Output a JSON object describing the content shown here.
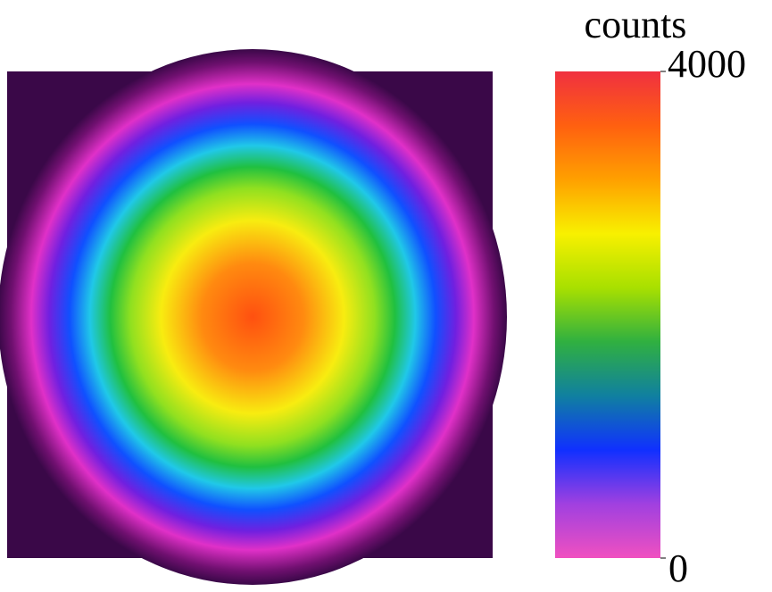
{
  "colorbar": {
    "title": "counts",
    "ticks": [
      0,
      4000
    ],
    "colors": [
      "#f050c0",
      "#a040e0",
      "#1030ff",
      "#1080a0",
      "#30b040",
      "#a8e000",
      "#f8f000",
      "#ffa000",
      "#ff6010",
      "#f03040"
    ]
  }
}
